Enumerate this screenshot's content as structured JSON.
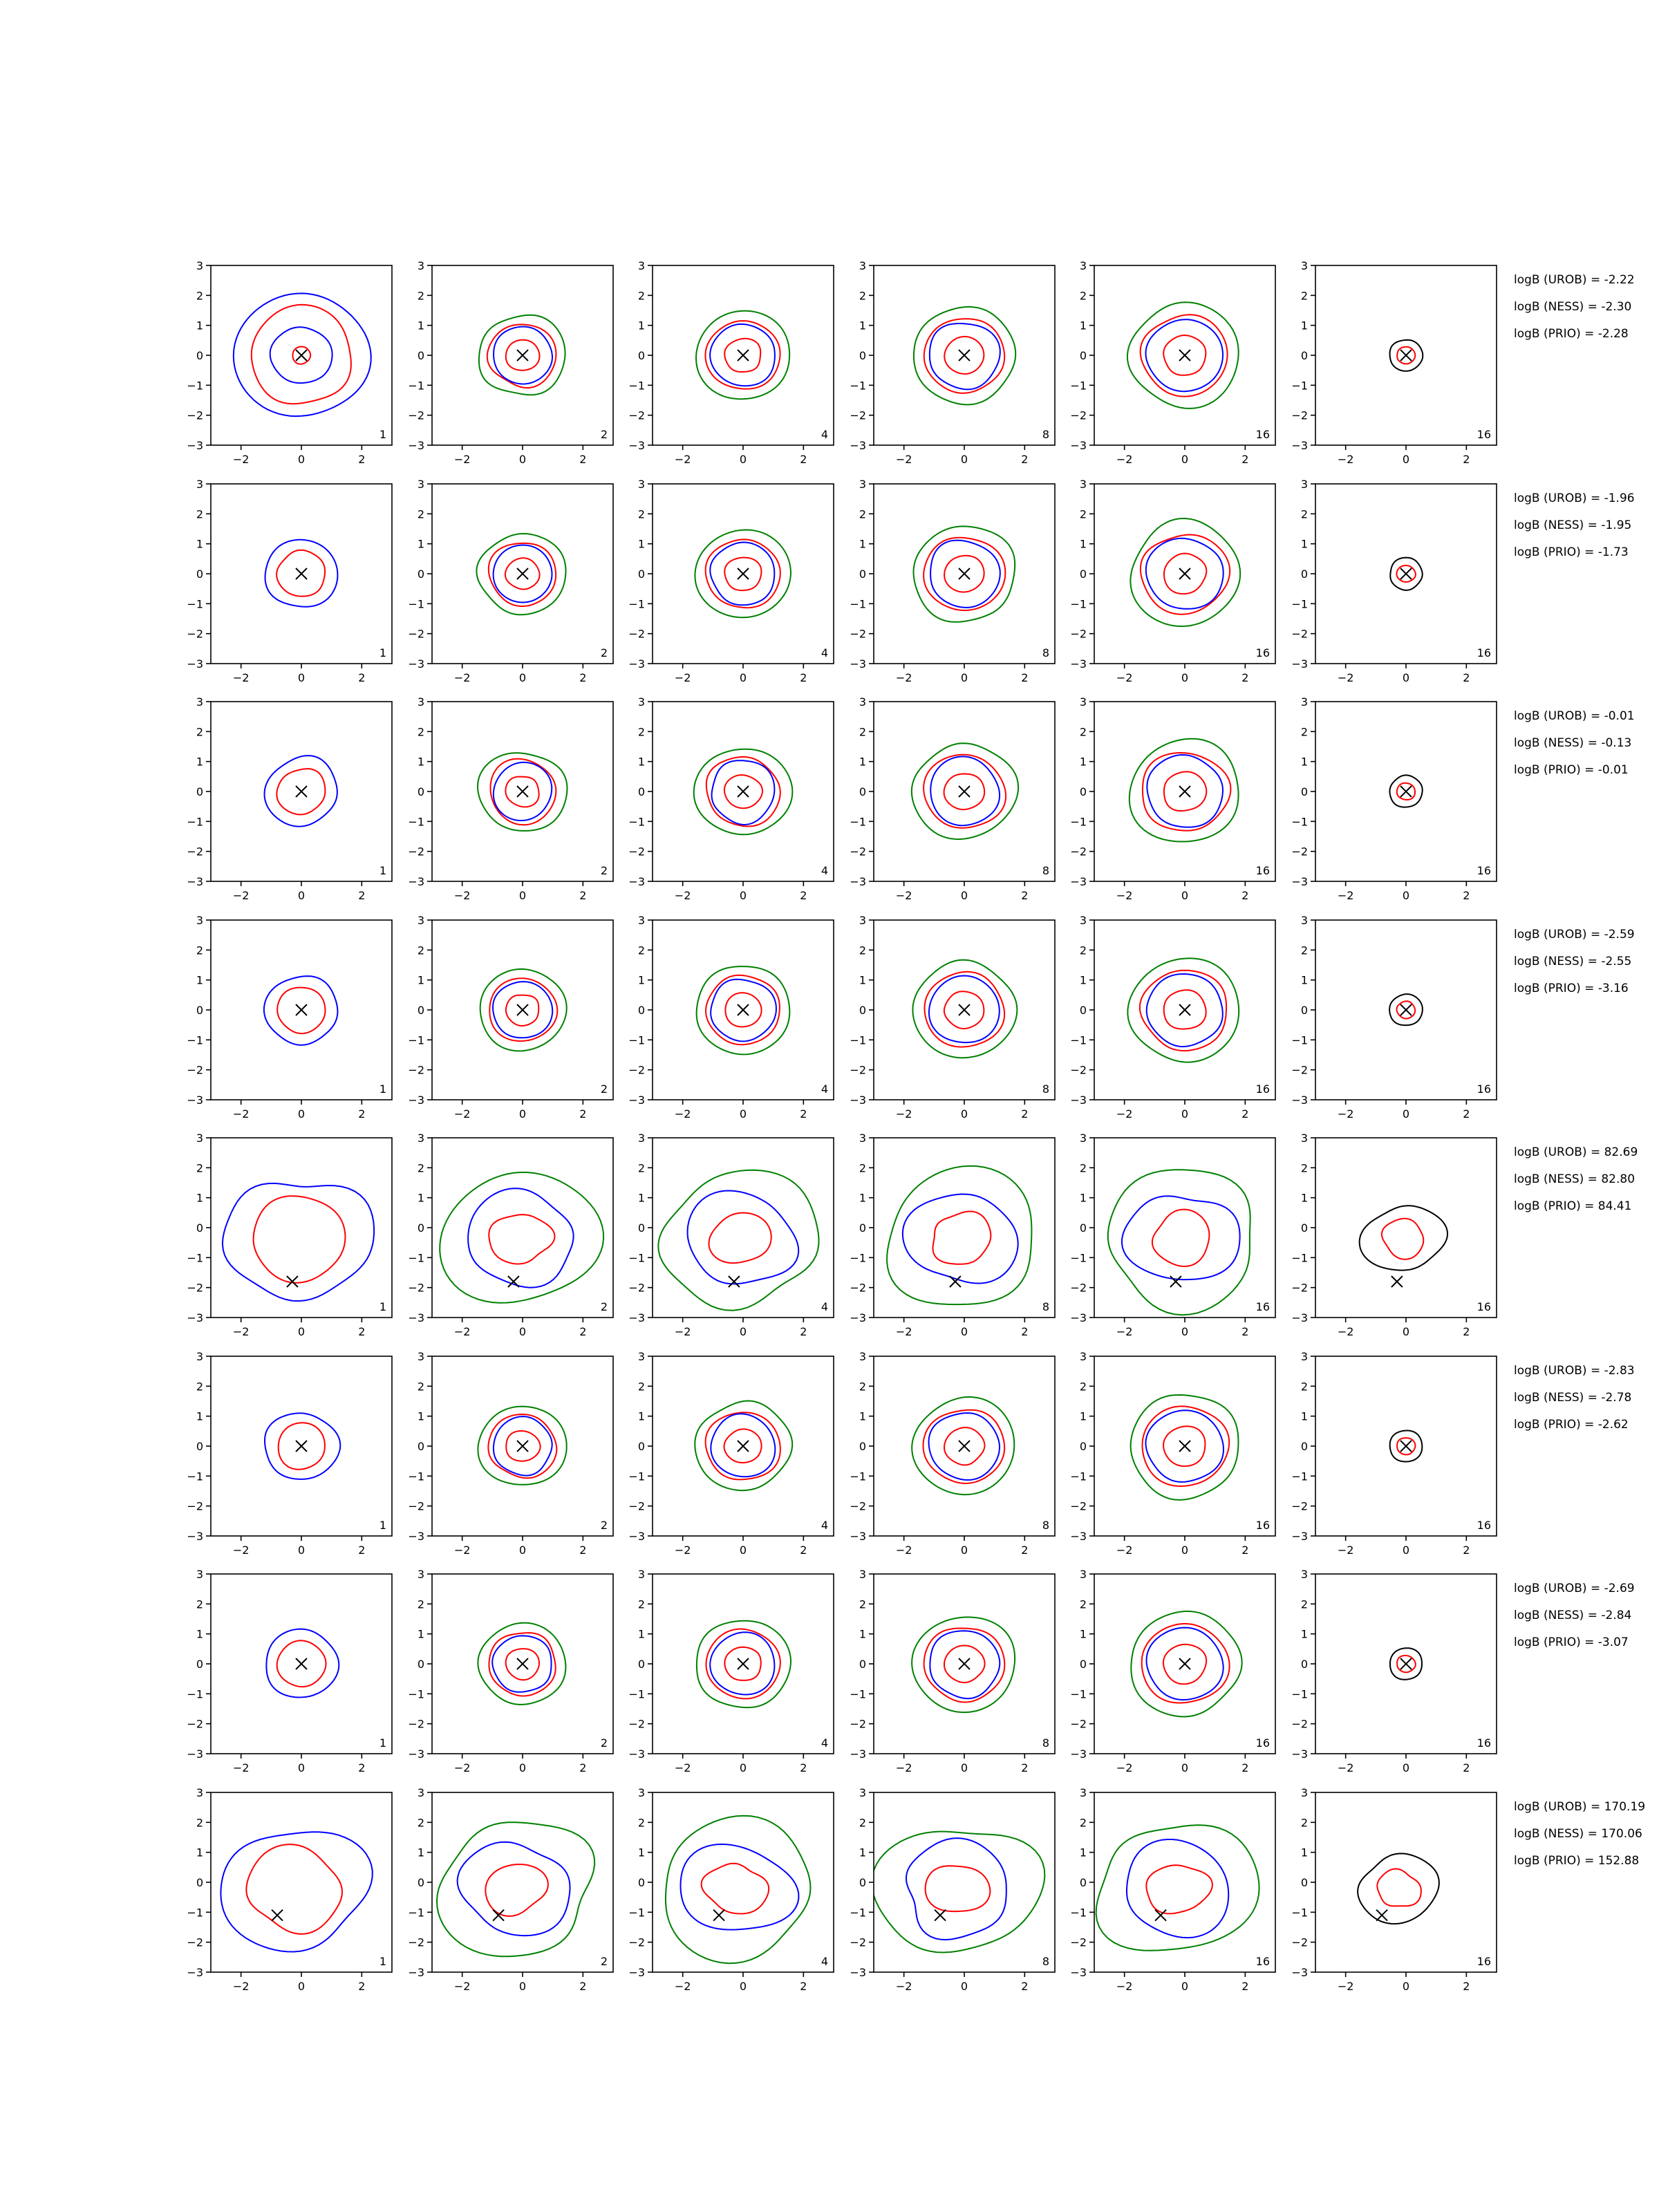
{
  "figure": {
    "colors": {
      "UROB": "#0000ff",
      "NESS": "#ff0000",
      "PRIO": "#008000",
      "reference": "#000000"
    },
    "axis": {
      "xlim": [
        -3,
        3
      ],
      "ylim": [
        -3,
        3
      ],
      "xticks": [
        -2,
        0,
        2
      ],
      "yticks": [
        -3,
        -2,
        -1,
        0,
        1,
        2,
        3
      ]
    },
    "column_tags": [
      "1",
      "2",
      "4",
      "8",
      "16",
      "16"
    ]
  },
  "chart_data": {
    "type": "contour",
    "xlim": [
      -3,
      3
    ],
    "ylim": [
      -3,
      3
    ],
    "grid": false,
    "rows": [
      {
        "marker": [
          0.0,
          0.0
        ],
        "panel_tags": [
          "1",
          "2",
          "4",
          "8",
          "16",
          "16"
        ],
        "logB": {
          "UROB": "logB (UROB) = -2.22",
          "NESS": "logB (NESS) = -2.30",
          "PRIO": "logB (PRIO) = -2.28"
        }
      },
      {
        "marker": [
          0.0,
          0.0
        ],
        "panel_tags": [
          "1",
          "2",
          "4",
          "8",
          "16",
          "16"
        ],
        "logB": {
          "UROB": "logB (UROB) = -1.96",
          "NESS": "logB (NESS) = -1.95",
          "PRIO": "logB (PRIO) = -1.73"
        }
      },
      {
        "marker": [
          0.0,
          0.0
        ],
        "panel_tags": [
          "1",
          "2",
          "4",
          "8",
          "16",
          "16"
        ],
        "logB": {
          "UROB": "logB (UROB) = -0.01",
          "NESS": "logB (NESS) = -0.13",
          "PRIO": "logB (PRIO) = -0.01"
        }
      },
      {
        "marker": [
          0.0,
          0.0
        ],
        "panel_tags": [
          "1",
          "2",
          "4",
          "8",
          "16",
          "16"
        ],
        "logB": {
          "UROB": "logB (UROB) = -2.59",
          "NESS": "logB (NESS) = -2.55",
          "PRIO": "logB (PRIO) = -3.16"
        }
      },
      {
        "marker": [
          -0.3,
          -1.8
        ],
        "panel_tags": [
          "1",
          "2",
          "4",
          "8",
          "16",
          "16"
        ],
        "logB": {
          "UROB": "logB (UROB) = 82.69",
          "NESS": "logB (NESS) = 82.80",
          "PRIO": "logB (PRIO) = 84.41"
        }
      },
      {
        "marker": [
          0.0,
          0.0
        ],
        "panel_tags": [
          "1",
          "2",
          "4",
          "8",
          "16",
          "16"
        ],
        "logB": {
          "UROB": "logB (UROB) = -2.83",
          "NESS": "logB (NESS) = -2.78",
          "PRIO": "logB (PRIO) = -2.62"
        }
      },
      {
        "marker": [
          0.0,
          0.0
        ],
        "panel_tags": [
          "1",
          "2",
          "4",
          "8",
          "16",
          "16"
        ],
        "logB": {
          "UROB": "logB (UROB) = -2.69",
          "NESS": "logB (NESS) = -2.84",
          "PRIO": "logB (PRIO) = -3.07"
        }
      },
      {
        "marker": [
          -0.8,
          -1.1
        ],
        "panel_tags": [
          "1",
          "2",
          "4",
          "8",
          "16",
          "16"
        ],
        "logB": {
          "UROB": "logB (UROB) = 170.19",
          "NESS": "logB (NESS) = 170.06",
          "PRIO": "logB (PRIO) = 152.88"
        }
      }
    ]
  }
}
